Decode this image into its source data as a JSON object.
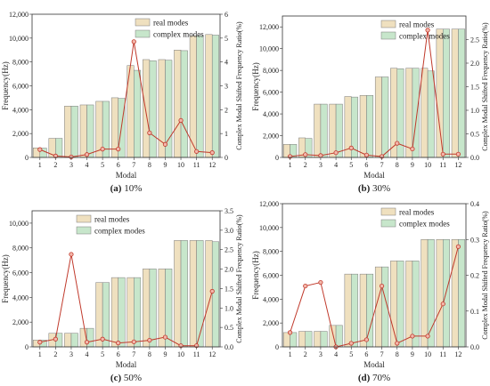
{
  "colors": {
    "real_bar": "#efe0bf",
    "complex_bar": "#c7e6cb",
    "line": "#c0392b",
    "marker_fill": "#f3b6aa",
    "axis": "#333333"
  },
  "chart_data": [
    {
      "type": "bar",
      "caption_letter": "(a)",
      "caption_text": " 10%",
      "categories": [
        "1",
        "2",
        "3",
        "4",
        "5",
        "6",
        "7",
        "8",
        "9",
        "10",
        "11",
        "12"
      ],
      "xlabel": "Modal",
      "ylabel": "Frequency(Hz)",
      "y2label": "Complex Modal Shifted Frequency Ratio(%)",
      "ylim": [
        0,
        12000
      ],
      "y_ticks": [
        0,
        2000,
        4000,
        6000,
        8000,
        10000,
        12000
      ],
      "y_tick_labels": [
        "0",
        "2,000",
        "4,000",
        "6,000",
        "8,000",
        "10,000",
        "12,000"
      ],
      "y2lim": [
        0,
        6
      ],
      "y2_ticks": [
        0,
        1,
        2,
        3,
        4,
        5,
        6
      ],
      "y2_tick_labels": [
        "0",
        "1",
        "2",
        "3",
        "4",
        "5",
        "6"
      ],
      "legend_position": "top-right",
      "series": [
        {
          "name": "real modes",
          "kind": "bar",
          "values": [
            800,
            1600,
            4300,
            4400,
            4700,
            5000,
            7700,
            8200,
            8200,
            9000,
            10200,
            10300
          ]
        },
        {
          "name": "complex modes",
          "kind": "bar",
          "values": [
            780,
            1600,
            4300,
            4400,
            4700,
            4950,
            7300,
            8100,
            8150,
            8950,
            10200,
            10250
          ]
        },
        {
          "kind": "line",
          "axis": "right",
          "values": [
            0.33,
            0.06,
            0.02,
            0.12,
            0.35,
            0.35,
            4.85,
            1.03,
            0.55,
            1.55,
            0.25,
            0.2
          ]
        }
      ]
    },
    {
      "type": "bar",
      "caption_letter": "(b)",
      "caption_text": " 30%",
      "categories": [
        "1",
        "2",
        "3",
        "4",
        "5",
        "6",
        "7",
        "8",
        "9",
        "10",
        "11",
        "12"
      ],
      "xlabel": "Modal",
      "ylabel": "Frequency(Hz)",
      "y2label": "Complex Modal Shifted Frequency Ratio(%)",
      "ylim": [
        0,
        13000
      ],
      "y_ticks": [
        0,
        2000,
        4000,
        6000,
        8000,
        10000,
        12000
      ],
      "y_tick_labels": [
        "0",
        "2,000",
        "4,000",
        "6,000",
        "8,000",
        "10,000",
        "12,000"
      ],
      "y2lim": [
        0,
        3
      ],
      "y2_ticks": [
        0,
        0.5,
        1,
        1.5,
        2,
        2.5
      ],
      "y2_tick_labels": [
        "0.0",
        "0.5",
        "1.0",
        "1.5",
        "2.0",
        "2.5"
      ],
      "legend_position": "top-right",
      "series": [
        {
          "name": "real modes",
          "kind": "bar",
          "values": [
            1200,
            1800,
            4900,
            4900,
            5600,
            5700,
            7400,
            8200,
            8200,
            8200,
            11800,
            11800
          ]
        },
        {
          "name": "complex modes",
          "kind": "bar",
          "values": [
            1200,
            1750,
            4900,
            4900,
            5550,
            5700,
            7400,
            8150,
            8200,
            7950,
            11800,
            11800
          ]
        },
        {
          "kind": "line",
          "axis": "right",
          "values": [
            0.02,
            0.06,
            0.04,
            0.1,
            0.2,
            0.05,
            0.02,
            0.3,
            0.18,
            2.7,
            0.07,
            0.07
          ]
        }
      ]
    },
    {
      "type": "bar",
      "caption_letter": "(c)",
      "caption_text": " 50%",
      "categories": [
        "1",
        "2",
        "3",
        "4",
        "5",
        "6",
        "7",
        "8",
        "9",
        "10",
        "11",
        "12"
      ],
      "xlabel": "Modal",
      "ylabel": "Frequency(Hz)",
      "y2label": "Complex Modal Shifted Frequency Ratio(%)",
      "ylim": [
        0,
        11000
      ],
      "y_ticks": [
        0,
        2000,
        4000,
        6000,
        8000,
        10000
      ],
      "y_tick_labels": [
        "0",
        "2,000",
        "4,000",
        "6,000",
        "8,000",
        "10,000"
      ],
      "y2lim": [
        0,
        3.5
      ],
      "y2_ticks": [
        0,
        0.5,
        1,
        1.5,
        2,
        2.5,
        3,
        3.5
      ],
      "y2_tick_labels": [
        "0.0",
        "0.5",
        "1.0",
        "1.5",
        "2.0",
        "2.5",
        "3.0",
        "3.5"
      ],
      "legend_position": "top-left",
      "series": [
        {
          "name": "real modes",
          "kind": "bar",
          "values": [
            550,
            1100,
            1100,
            1500,
            5200,
            5600,
            5600,
            6300,
            6300,
            8600,
            8600,
            8600
          ]
        },
        {
          "name": "complex modes",
          "kind": "bar",
          "values": [
            550,
            1100,
            1100,
            1500,
            5200,
            5600,
            5600,
            6300,
            6300,
            8600,
            8600,
            8500
          ]
        },
        {
          "kind": "line",
          "axis": "right",
          "values": [
            0.12,
            0.2,
            2.38,
            0.12,
            0.2,
            0.1,
            0.13,
            0.17,
            0.25,
            0.03,
            0.03,
            1.43
          ]
        }
      ]
    },
    {
      "type": "bar",
      "caption_letter": "(d)",
      "caption_text": " 70%",
      "categories": [
        "1",
        "2",
        "3",
        "4",
        "5",
        "6",
        "7",
        "8",
        "9",
        "10",
        "11",
        "12"
      ],
      "xlabel": "Modal",
      "ylabel": "Frequency(Hz)",
      "y2label": "Complex Modal Shifted Frequency Ratio(%)",
      "ylim": [
        0,
        12000
      ],
      "y_ticks": [
        0,
        2000,
        4000,
        6000,
        8000,
        10000,
        12000
      ],
      "y_tick_labels": [
        "0",
        "2,000",
        "4,000",
        "6,000",
        "8,000",
        "10,000",
        "12,000"
      ],
      "y2lim": [
        0,
        0.4
      ],
      "y2_ticks": [
        0,
        0.1,
        0.2,
        0.3,
        0.4
      ],
      "y2_tick_labels": [
        "0.0",
        "0.1",
        "0.2",
        "0.3",
        "0.4"
      ],
      "legend_position": "top-right",
      "series": [
        {
          "name": "real modes",
          "kind": "bar",
          "values": [
            1200,
            1300,
            1300,
            1800,
            6100,
            6100,
            6700,
            7200,
            7200,
            9000,
            9000,
            9000
          ]
        },
        {
          "name": "complex modes",
          "kind": "bar",
          "values": [
            1200,
            1300,
            1300,
            1800,
            6100,
            6100,
            6700,
            7200,
            7200,
            9000,
            9000,
            9000
          ]
        },
        {
          "kind": "line",
          "axis": "right",
          "values": [
            0.04,
            0.17,
            0.18,
            0.0,
            0.01,
            0.02,
            0.17,
            0.01,
            0.03,
            0.03,
            0.12,
            0.28
          ]
        }
      ]
    }
  ]
}
